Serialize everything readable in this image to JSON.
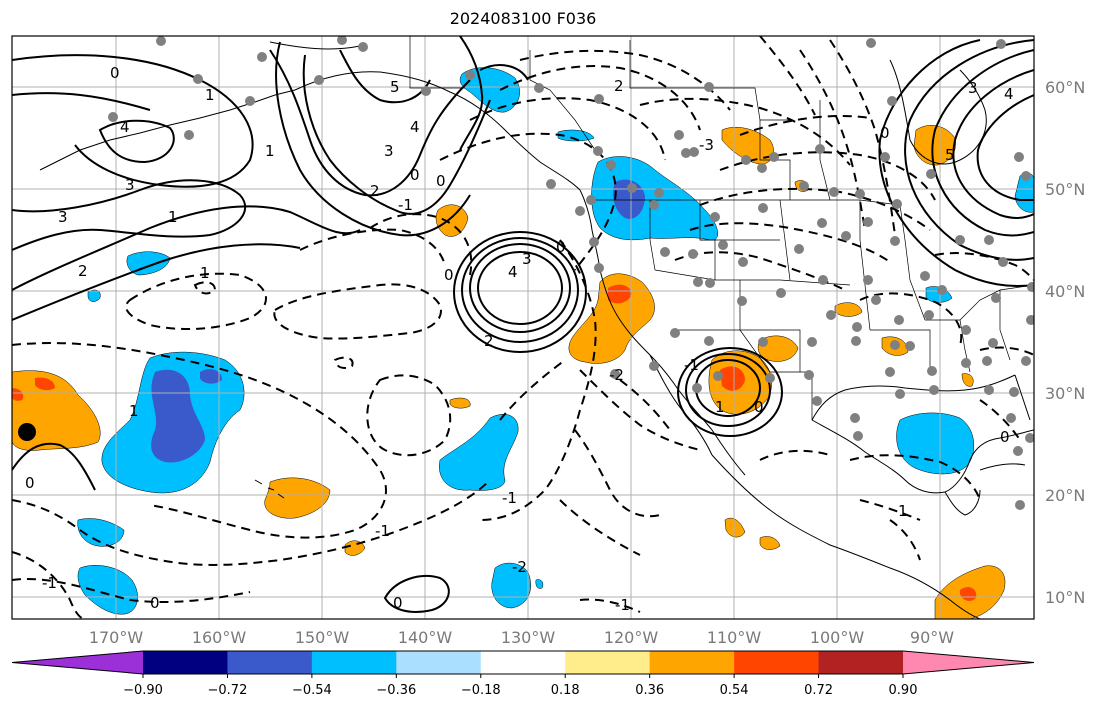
{
  "title": "2024083100 F036",
  "lon_labels": [
    "170°W",
    "160°W",
    "150°W",
    "140°W",
    "130°W",
    "120°W",
    "110°W",
    "100°W",
    "90°W"
  ],
  "lat_labels": [
    "60°N",
    "50°N",
    "40°N",
    "30°N",
    "20°N",
    "10°N"
  ],
  "colorbar": {
    "colors": [
      "#9b30d9",
      "#000080",
      "#3a5acc",
      "#00bfff",
      "#aadfff",
      "#ffffff",
      "#ffec8b",
      "#ffa500",
      "#ff4500",
      "#b22222",
      "#ff88b0"
    ],
    "labels": [
      "−0.90",
      "−0.72",
      "−0.54",
      "−0.36",
      "−0.18",
      "0.18",
      "0.36",
      "0.54",
      "0.72",
      "0.90"
    ]
  },
  "contour_labels": [
    "0",
    "1",
    "4",
    "3",
    "1",
    "3",
    "2",
    "5",
    "4",
    "3",
    "2",
    "0",
    "0",
    "1",
    "1",
    "3",
    "4",
    "2",
    "0",
    "-1",
    "2",
    "-3",
    "0",
    "1",
    "0",
    "-1",
    "-1",
    "-1",
    "-2",
    "1",
    "0",
    "-1",
    "0",
    "-1",
    "-2",
    "0",
    "5",
    "3",
    "4",
    "0",
    "0",
    "1"
  ],
  "colors": {
    "positive_contour": "#000000",
    "negative_contour": "#000000",
    "station": "#808080",
    "land": "#000000",
    "grid": "#b0b0b0"
  }
}
